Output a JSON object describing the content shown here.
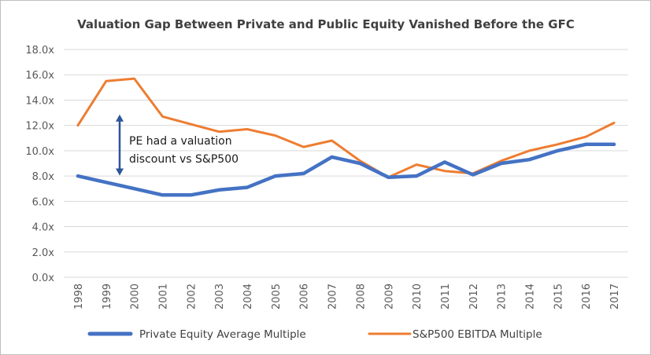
{
  "chart_data": {
    "type": "line",
    "title": "Valuation Gap Between Private and Public Equity Vanished Before the GFC",
    "xlabel": "",
    "ylabel": "",
    "categories": [
      "1998",
      "1999",
      "2000",
      "2001",
      "2002",
      "2003",
      "2004",
      "2005",
      "2006",
      "2007",
      "2008",
      "2009",
      "2010",
      "2011",
      "2012",
      "2013",
      "2014",
      "2015",
      "2016",
      "2017"
    ],
    "ylim": [
      0,
      18
    ],
    "yticks": [
      0,
      2,
      4,
      6,
      8,
      10,
      12,
      14,
      16,
      18
    ],
    "ytick_labels": [
      "0.0x",
      "2.0x",
      "4.0x",
      "6.0x",
      "8.0x",
      "10.0x",
      "12.0x",
      "14.0x",
      "16.0x",
      "18.0x"
    ],
    "grid": true,
    "legend_position": "bottom",
    "series": [
      {
        "name": "Private Equity Average Multiple",
        "color": "#4472C4",
        "values": [
          8.0,
          7.5,
          7.0,
          6.5,
          6.5,
          6.9,
          7.1,
          8.0,
          8.2,
          9.5,
          9.0,
          7.9,
          8.0,
          9.1,
          8.1,
          9.0,
          9.3,
          10.0,
          10.5,
          10.5
        ]
      },
      {
        "name": "S&P500 EBITDA Multiple",
        "color": "#ED7D31",
        "values": [
          12.0,
          15.5,
          15.7,
          12.7,
          12.1,
          11.5,
          11.7,
          11.2,
          10.3,
          10.8,
          9.2,
          7.9,
          8.9,
          8.4,
          8.2,
          9.2,
          10.0,
          10.5,
          11.1,
          12.2
        ]
      }
    ],
    "annotation": {
      "lines": [
        "PE had a valuation",
        "discount vs S&P500"
      ],
      "arrow_from": 12.8,
      "arrow_to": 8.1,
      "arrow_color": "#2E5597"
    }
  }
}
